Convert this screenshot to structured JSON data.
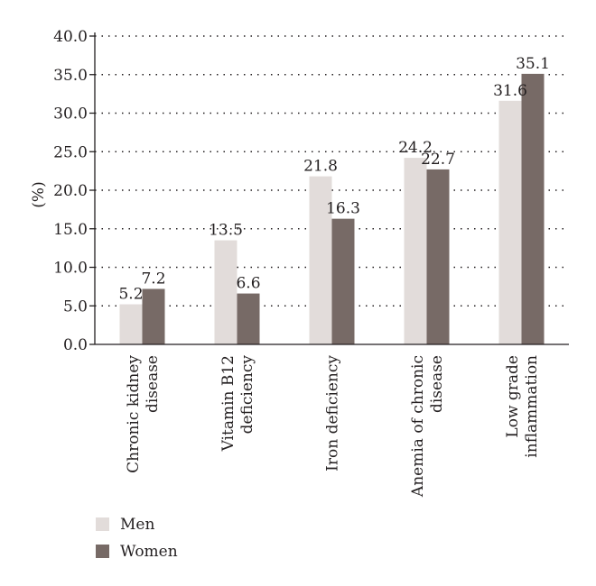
{
  "chart_data": {
    "type": "bar",
    "title": "",
    "xlabel": "",
    "ylabel": "(%)",
    "ylim": [
      0,
      40
    ],
    "yticks": [
      "0.0",
      "5.0",
      "10.0",
      "15.0",
      "20.0",
      "25.0",
      "30.0",
      "35.0",
      "40.0"
    ],
    "grid": true,
    "legend_position": "bottom-left",
    "categories": [
      [
        "Chronic kidney",
        "disease"
      ],
      [
        "Vitamin B12",
        "deficiency"
      ],
      [
        "Iron deficiency"
      ],
      [
        "Anemia of chronic",
        "disease"
      ],
      [
        "Low grade",
        "inflammation"
      ]
    ],
    "series": [
      {
        "name": "Men",
        "color": "#e2dcda",
        "values": [
          5.2,
          13.5,
          21.8,
          24.2,
          31.6
        ],
        "labels": [
          "5.2",
          "13.5",
          "21.8",
          "24.2",
          "31.6"
        ]
      },
      {
        "name": "Women",
        "color": "#776a66",
        "values": [
          7.2,
          6.6,
          16.3,
          22.7,
          35.1
        ],
        "labels": [
          "7.2",
          "6.6",
          "16.3",
          "22.7",
          "35.1"
        ]
      }
    ]
  }
}
